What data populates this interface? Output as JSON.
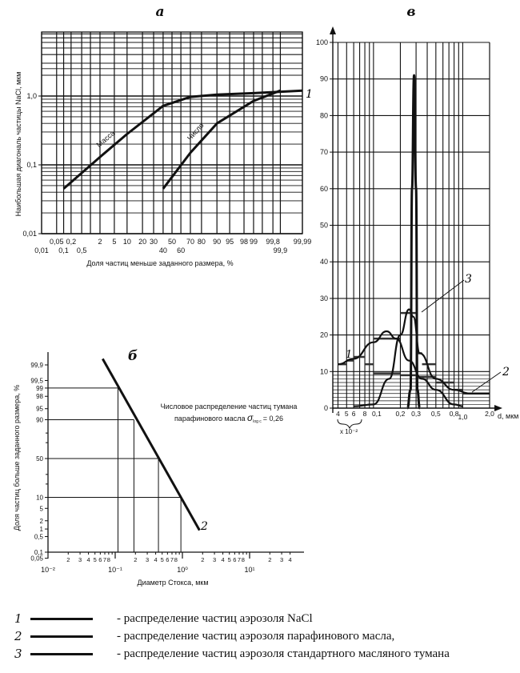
{
  "chart_data": [
    {
      "id": "a",
      "type": "line",
      "panel_label": "а",
      "title": "",
      "xlabel": "Доля частиц меньше заданного размера, %",
      "ylabel": "Наибольшая диагональ частицы NaCl, мкм",
      "xscale": "probability",
      "yscale": "log",
      "ylim": [
        0.01,
        3
      ],
      "y_ticks": [
        "1,0",
        "0,1",
        "0,01"
      ],
      "y_tick_values": [
        1.0,
        0.1,
        0.01
      ],
      "x_ticks_upper": [
        "0,05",
        "0,2",
        "2",
        "5",
        "10",
        "20",
        "30",
        "50",
        "70",
        "80",
        "90",
        "95",
        "98",
        "99",
        "99,8",
        "99,99"
      ],
      "x_ticks_upper_values": [
        0.05,
        0.2,
        2,
        5,
        10,
        20,
        30,
        50,
        70,
        80,
        90,
        95,
        98,
        99,
        99.8,
        99.99
      ],
      "x_ticks_lower": [
        "0,01",
        "0,1",
        "0,5",
        "40",
        "60",
        "99,9"
      ],
      "x_ticks_lower_values": [
        0.01,
        0.1,
        0.5,
        40,
        60,
        99.9
      ],
      "series": [
        {
          "name": "Масса",
          "points": [
            [
              0.1,
              0.045
            ],
            [
              2,
              0.13
            ],
            [
              10,
              0.28
            ],
            [
              40,
              0.72
            ],
            [
              70,
              0.97
            ],
            [
              90,
              1.05
            ],
            [
              99,
              1.1
            ],
            [
              99.99,
              1.2
            ]
          ]
        },
        {
          "name": "Число",
          "points": [
            [
              40,
              0.045
            ],
            [
              70,
              0.15
            ],
            [
              90,
              0.4
            ],
            [
              99,
              0.85
            ],
            [
              99.9,
              1.2
            ]
          ]
        }
      ],
      "annotations": [
        "1"
      ]
    },
    {
      "id": "b",
      "type": "line",
      "panel_label": "б",
      "xlabel": "Диаметр Стокса, мкм",
      "ylabel": "Доля частиц больше заданного размера, %",
      "xscale": "log",
      "yscale": "probability",
      "xlim": [
        0.01,
        50
      ],
      "x_decade_labels": [
        "10⁻²",
        "10⁻¹",
        "10⁰",
        "10¹"
      ],
      "x_minor_labels": [
        "2",
        "3",
        "4",
        "5",
        "6",
        "7",
        "8"
      ],
      "y_ticks": [
        "99,9",
        "99,5",
        "99",
        "98",
        "95",
        "90",
        "50",
        "10",
        "5",
        "2",
        "1",
        "0,5",
        "0,1",
        "0,05"
      ],
      "y_tick_values": [
        99.9,
        99.5,
        99,
        98,
        95,
        90,
        50,
        10,
        5,
        2,
        1,
        0.5,
        0.1,
        0.05
      ],
      "series": [
        {
          "name": "2",
          "points": [
            [
              0.065,
              99.95
            ],
            [
              0.11,
              99
            ],
            [
              0.19,
              90
            ],
            [
              0.44,
              50
            ],
            [
              0.95,
              10
            ],
            [
              1.8,
              0.9
            ]
          ]
        }
      ],
      "guide_lines": [
        [
          0.11,
          99
        ],
        [
          0.19,
          90
        ],
        [
          0.44,
          50
        ],
        [
          0.95,
          10
        ]
      ],
      "annotation": "Числовое распределение частиц тумана парафинового масла σ",
      "annotation_sub": "log c",
      "annotation_value": "= 0,26",
      "curve_label": "2"
    },
    {
      "id": "c",
      "type": "line",
      "panel_label": "в",
      "xlabel": "d, мкм",
      "ylabel": "",
      "ylim": [
        0,
        100
      ],
      "y_ticks": [
        "0",
        "10",
        "20",
        "30",
        "40",
        "50",
        "60",
        "70",
        "80",
        "90",
        "100"
      ],
      "x_ticks": [
        "4",
        "5",
        "6",
        "8",
        "0,1",
        "0,2",
        "0,3",
        "0,5",
        "0,8",
        "1,0",
        "2,0"
      ],
      "x_multiplier_note": "x 10⁻²",
      "series": [
        {
          "name": "1",
          "points": [
            [
              0.04,
              12
            ],
            [
              0.06,
              13.5
            ],
            [
              0.1,
              18
            ],
            [
              0.14,
              21
            ],
            [
              0.18,
              19
            ],
            [
              0.25,
              13
            ],
            [
              0.35,
              8
            ],
            [
              0.5,
              5
            ],
            [
              0.8,
              1
            ],
            [
              1.0,
              0.5
            ]
          ]
        },
        {
          "name": "2",
          "points": [
            [
              0.06,
              0.5
            ],
            [
              0.1,
              1
            ],
            [
              0.15,
              8
            ],
            [
              0.2,
              20
            ],
            [
              0.25,
              27
            ],
            [
              0.28,
              25
            ],
            [
              0.33,
              15
            ],
            [
              0.5,
              8
            ],
            [
              0.8,
              5
            ],
            [
              1.2,
              4
            ],
            [
              2.0,
              4
            ]
          ]
        },
        {
          "name": "3",
          "points": [
            [
              0.24,
              0
            ],
            [
              0.26,
              5
            ],
            [
              0.27,
              60
            ],
            [
              0.285,
              91
            ],
            [
              0.3,
              60
            ],
            [
              0.31,
              5
            ],
            [
              0.33,
              0
            ]
          ]
        }
      ],
      "labels": [
        "1",
        "2",
        "3"
      ]
    }
  ],
  "legend": [
    {
      "num": "1",
      "text": "- распределение частиц аэрозоля NaCl"
    },
    {
      "num": "2",
      "text": "- распределение частиц аэрозоля парафинового масла,"
    },
    {
      "num": "3",
      "text": "- распределение частиц аэрозоля стандартного масляного тумана"
    }
  ]
}
